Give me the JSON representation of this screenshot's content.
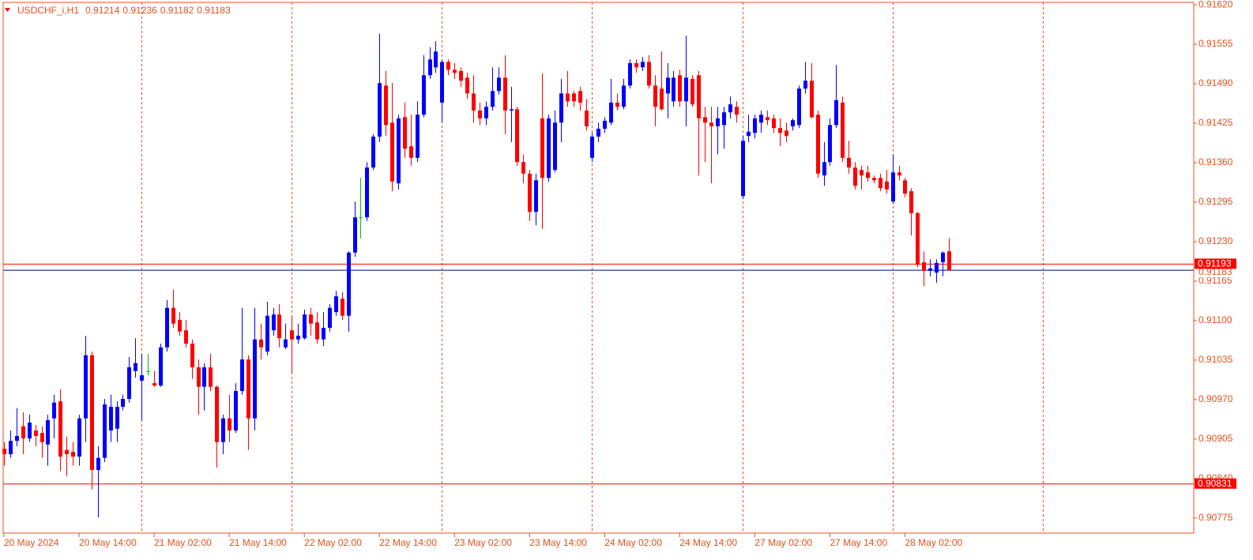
{
  "chart_data": {
    "type": "candlestick",
    "symbol": "USDCHF_i,H1",
    "xlim": [
      0,
      190
    ],
    "ylim": [
      0.9075,
      0.91624
    ],
    "yticks": [
      {
        "value": 0.9162,
        "label": "0.91620"
      },
      0.91555,
      {
        "value": 0.9149,
        "label": "0.91490"
      },
      0.91425,
      {
        "value": 0.9136,
        "label": "0.91360"
      },
      0.91295,
      {
        "value": 0.9123,
        "label": "0.91230"
      },
      0.91165,
      {
        "value": 0.911,
        "label": "0.91100"
      },
      0.91035,
      {
        "value": 0.9097,
        "label": "0.90970"
      },
      0.90905,
      {
        "value": 0.9084,
        "label": "0.90840"
      },
      0.90775
    ],
    "xticks": [
      {
        "value": 0,
        "label": "20 May 2024"
      },
      {
        "value": 12,
        "label": "20 May 14:00"
      },
      {
        "value": 24,
        "label": "21 May 02:00"
      },
      {
        "value": 36,
        "label": "21 May 14:00"
      },
      {
        "value": 48,
        "label": "22 May 02:00"
      },
      {
        "value": 60,
        "label": "22 May 14:00"
      },
      {
        "value": 72,
        "label": "23 May 02:00"
      },
      {
        "value": 84,
        "label": "23 May 14:00"
      },
      {
        "value": 96,
        "label": "24 May 02:00"
      },
      {
        "value": 108,
        "label": "24 May 14:00"
      },
      {
        "value": 120,
        "label": "27 May 02:00"
      },
      {
        "value": 132,
        "label": "27 May 14:00"
      },
      {
        "value": 144,
        "label": "28 May 02:00"
      }
    ],
    "up_color": "#0000ff",
    "down_color": "#ff0000",
    "doji_color": "#00c000",
    "axis_color": "#e8501e",
    "bid_color": "#000080",
    "levels": [
      {
        "value": 0.91193,
        "color": "#ff0000"
      },
      {
        "value": 0.90831,
        "color": "#ff0000"
      }
    ],
    "open": [
      0.90889,
      0.9088,
      0.90902,
      0.90926,
      0.90906,
      0.90919,
      0.90915,
      0.90896,
      0.90939,
      0.90967,
      0.90887,
      0.90884,
      0.90876,
      0.90939,
      0.91043,
      0.90854,
      0.90874,
      0.90919,
      0.90922,
      0.90958,
      0.90971,
      0.91017,
      0.91001,
      0.91017,
      0.90997,
      0.90993,
      0.91056,
      0.91121,
      0.91101,
      0.91084,
      0.91062,
      0.91023,
      0.90991,
      0.91023,
      0.90991,
      0.909,
      0.90939,
      0.90919,
      0.90984,
      0.91036,
      0.90939,
      0.91069,
      0.91049,
      0.91084,
      0.9111,
      0.91056,
      0.91084,
      0.91069,
      0.91071,
      0.9111,
      0.91097,
      0.91069,
      0.91088,
      0.91114,
      0.91136,
      0.91108,
      0.91212,
      0.9127,
      0.9127,
      0.91352,
      0.91403,
      0.91487,
      0.91426,
      0.91326,
      0.91435,
      0.91387,
      0.91368,
      0.91439,
      0.91504,
      0.91517,
      0.91459,
      0.91526,
      0.91513,
      0.91511,
      0.915,
      0.91474,
      0.91446,
      0.91433,
      0.91452,
      0.91478,
      0.915,
      0.91446,
      0.91448,
      0.91361,
      0.91342,
      0.91279,
      0.91433,
      0.91335,
      0.91348,
      0.91426,
      0.91474,
      0.91474,
      0.91478,
      0.91446,
      0.91368,
      0.91403,
      0.91416,
      0.91426,
      0.91459,
      0.91452,
      0.91487,
      0.91524,
      0.91517,
      0.91526,
      0.91487,
      0.91482,
      0.91474,
      0.91461,
      0.91504,
      0.91461,
      0.91498,
      0.91504,
      0.91435,
      0.91426,
      0.9142,
      0.91422,
      0.91443,
      0.91452,
      0.91305,
      0.91404,
      0.91409,
      0.91426,
      0.91435,
      0.91433,
      0.91417,
      0.91413,
      0.9142,
      0.91422,
      0.91482,
      0.91495,
      0.91439,
      0.91339,
      0.91361,
      0.91422,
      0.91459,
      0.91368,
      0.91352,
      0.91348,
      0.91344,
      0.91335,
      0.91335,
      0.91329,
      0.91296,
      0.91344,
      0.91331,
      0.91313,
      0.91277,
      0.91196,
      0.91182,
      0.91179,
      0.91196,
      0.91214
    ],
    "high": [
      0.909,
      0.90919,
      0.90956,
      0.90949,
      0.90945,
      0.90928,
      0.90926,
      0.90945,
      0.90978,
      0.90987,
      0.90909,
      0.909,
      0.90945,
      0.91075,
      0.91049,
      0.90893,
      0.90971,
      0.90978,
      0.90967,
      0.90978,
      0.9104,
      0.91071,
      0.91045,
      0.91045,
      0.91017,
      0.91062,
      0.91134,
      0.91151,
      0.91114,
      0.91101,
      0.91069,
      0.91036,
      0.9103,
      0.91045,
      0.90993,
      0.90945,
      0.90978,
      0.90997,
      0.91121,
      0.91043,
      0.91121,
      0.91095,
      0.91131,
      0.91121,
      0.91127,
      0.91095,
      0.91108,
      0.91095,
      0.91118,
      0.91121,
      0.91114,
      0.91114,
      0.91127,
      0.91149,
      0.91147,
      0.91214,
      0.91296,
      0.91335,
      0.91361,
      0.91407,
      0.91572,
      0.91511,
      0.91491,
      0.91439,
      0.91459,
      0.91439,
      0.91461,
      0.91537,
      0.9155,
      0.9156,
      0.9153,
      0.9153,
      0.91524,
      0.91517,
      0.91508,
      0.91504,
      0.91459,
      0.91461,
      0.91517,
      0.91517,
      0.91537,
      0.91485,
      0.91452,
      0.91374,
      0.91348,
      0.91342,
      0.91507,
      0.91439,
      0.91446,
      0.91498,
      0.91511,
      0.91478,
      0.91485,
      0.91465,
      0.91409,
      0.91426,
      0.91435,
      0.91498,
      0.91474,
      0.91498,
      0.9153,
      0.9153,
      0.91534,
      0.91537,
      0.91504,
      0.91543,
      0.91524,
      0.91511,
      0.91513,
      0.91569,
      0.91504,
      0.91511,
      0.91452,
      0.91452,
      0.91452,
      0.91452,
      0.91469,
      0.91461,
      0.91404,
      0.91439,
      0.91439,
      0.91446,
      0.91446,
      0.91439,
      0.91433,
      0.91426,
      0.91433,
      0.91487,
      0.91526,
      0.91524,
      0.91446,
      0.91394,
      0.91433,
      0.91521,
      0.91469,
      0.91396,
      0.91361,
      0.91355,
      0.91355,
      0.91339,
      0.91342,
      0.91348,
      0.91374,
      0.91355,
      0.91335,
      0.91318,
      0.91279,
      0.91214,
      0.91201,
      0.91201,
      0.91214,
      0.91236
    ],
    "low": [
      0.90861,
      0.90874,
      0.90893,
      0.9088,
      0.909,
      0.90893,
      0.90874,
      0.90861,
      0.90906,
      0.90852,
      0.90844,
      0.90861,
      0.90861,
      0.909,
      0.90822,
      0.90776,
      0.90867,
      0.909,
      0.909,
      0.90952,
      0.90965,
      0.91006,
      0.90935,
      0.9101,
      0.90991,
      0.90991,
      0.91049,
      0.91088,
      0.91075,
      0.91056,
      0.91004,
      0.90945,
      0.90952,
      0.90984,
      0.90858,
      0.9088,
      0.909,
      0.90915,
      0.90978,
      0.90887,
      0.90919,
      0.91036,
      0.91043,
      0.91075,
      0.91056,
      0.91053,
      0.91014,
      0.91062,
      0.91069,
      0.91075,
      0.91062,
      0.91058,
      0.91082,
      0.91108,
      0.91101,
      0.91082,
      0.91205,
      0.91235,
      0.91264,
      0.91348,
      0.91394,
      0.91404,
      0.91313,
      0.91316,
      0.91368,
      0.91355,
      0.91361,
      0.91435,
      0.91498,
      0.91508,
      0.91426,
      0.91504,
      0.91498,
      0.91485,
      0.91465,
      0.91426,
      0.91422,
      0.91422,
      0.91446,
      0.91472,
      0.91407,
      0.91394,
      0.91355,
      0.91326,
      0.91264,
      0.91257,
      0.91251,
      0.91329,
      0.91344,
      0.91394,
      0.91452,
      0.91452,
      0.91446,
      0.91413,
      0.91361,
      0.91394,
      0.91409,
      0.91422,
      0.91446,
      0.91448,
      0.91482,
      0.91508,
      0.91511,
      0.91482,
      0.9142,
      0.91446,
      0.91433,
      0.91452,
      0.91452,
      0.9142,
      0.91452,
      0.91339,
      0.91361,
      0.91326,
      0.91374,
      0.91383,
      0.91433,
      0.91426,
      0.913,
      0.91394,
      0.914,
      0.91409,
      0.91422,
      0.91409,
      0.91387,
      0.91394,
      0.91413,
      0.91417,
      0.91474,
      0.91433,
      0.91335,
      0.91322,
      0.91355,
      0.91417,
      0.91361,
      0.91342,
      0.91316,
      0.91316,
      0.91329,
      0.91326,
      0.91313,
      0.91309,
      0.91292,
      0.91331,
      0.91303,
      0.9124,
      0.91188,
      0.91157,
      0.91173,
      0.91162,
      0.91173,
      0.91182
    ],
    "close": [
      0.9088,
      0.90902,
      0.9091,
      0.90906,
      0.90932,
      0.9091,
      0.909,
      0.90936,
      0.90965,
      0.90876,
      0.9088,
      0.90876,
      0.90939,
      0.91043,
      0.90854,
      0.90874,
      0.90962,
      0.90958,
      0.90958,
      0.90971,
      0.91023,
      0.9103,
      0.9101,
      0.91017,
      0.90993,
      0.91056,
      0.91121,
      0.91095,
      0.91082,
      0.91062,
      0.91023,
      0.90991,
      0.91023,
      0.90991,
      0.909,
      0.90939,
      0.90919,
      0.90984,
      0.91036,
      0.90939,
      0.91069,
      0.91056,
      0.91108,
      0.9111,
      0.91071,
      0.91069,
      0.91069,
      0.91075,
      0.9111,
      0.91095,
      0.91069,
      0.91088,
      0.91121,
      0.9114,
      0.91108,
      0.91212,
      0.9127,
      0.9127,
      0.91352,
      0.91403,
      0.91491,
      0.91422,
      0.91329,
      0.91433,
      0.91383,
      0.91368,
      0.91439,
      0.91504,
      0.9153,
      0.91543,
      0.91526,
      0.91513,
      0.91508,
      0.91495,
      0.91474,
      0.91446,
      0.91433,
      0.91452,
      0.91478,
      0.915,
      0.91446,
      0.91448,
      0.91361,
      0.91342,
      0.91279,
      0.91331,
      0.91335,
      0.91433,
      0.91426,
      0.91474,
      0.91461,
      0.91461,
      0.91459,
      0.9142,
      0.91403,
      0.91416,
      0.91429,
      0.91459,
      0.91452,
      0.91487,
      0.91524,
      0.91517,
      0.91526,
      0.91487,
      0.91452,
      0.91448,
      0.915,
      0.915,
      0.91461,
      0.915,
      0.91456,
      0.91433,
      0.91426,
      0.9142,
      0.91433,
      0.91443,
      0.91456,
      0.91439,
      0.91396,
      0.91411,
      0.91433,
      0.91439,
      0.9143,
      0.91417,
      0.91409,
      0.91404,
      0.9143,
      0.91482,
      0.91495,
      0.91435,
      0.91342,
      0.91361,
      0.91422,
      0.91463,
      0.91368,
      0.91352,
      0.91322,
      0.91339,
      0.91335,
      0.91331,
      0.91318,
      0.91316,
      0.91344,
      0.91339,
      0.91309,
      0.91277,
      0.91192,
      0.91182,
      0.91186,
      0.91195,
      0.91212,
      0.91183
    ]
  }
}
